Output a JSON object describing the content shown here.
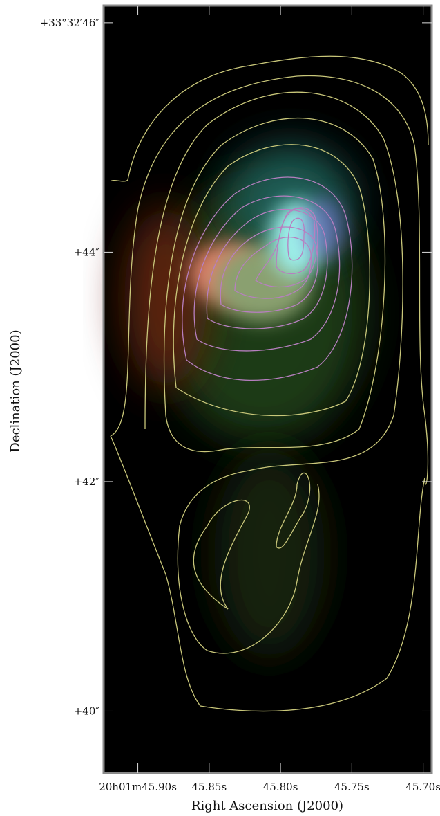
{
  "chart_data": {
    "type": "image",
    "x_label": "Right Ascension (J2000)",
    "y_label": "Declination (J2000)",
    "xlim": [
      45.924,
      45.694
    ],
    "xticks": [
      {
        "value": 45.9,
        "label": "20h01m45.90s"
      },
      {
        "value": 45.85,
        "label": "45.85s"
      },
      {
        "value": 45.8,
        "label": "45.80s"
      },
      {
        "value": 45.75,
        "label": "45.75s"
      },
      {
        "value": 45.7,
        "label": "45.70s"
      }
    ],
    "ylim": [
      39.46,
      46.15
    ],
    "yticks": [
      {
        "value": 46,
        "label": "+33°32′46″"
      },
      {
        "value": 44,
        "label": "+44″"
      },
      {
        "value": 42,
        "label": "+42″"
      },
      {
        "value": 40,
        "label": "+40″"
      }
    ]
  }
}
